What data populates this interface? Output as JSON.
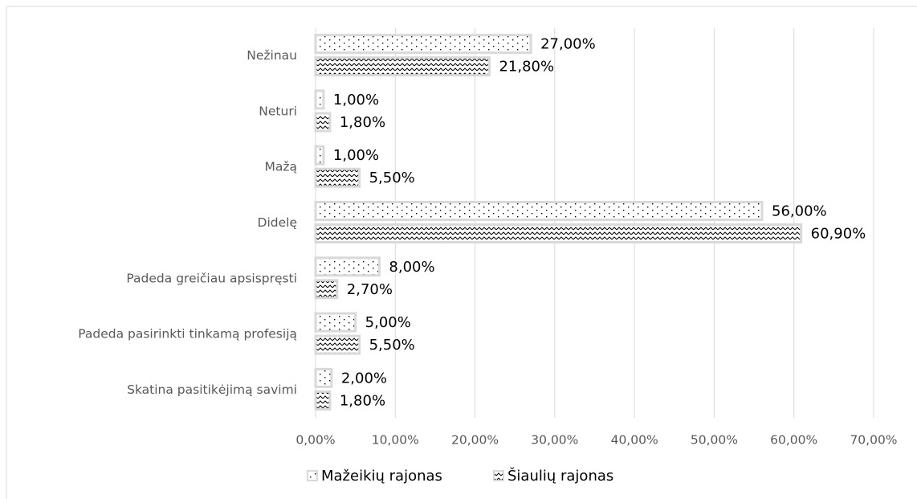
{
  "chart_data": {
    "type": "hbar",
    "categories": [
      "Nežinau",
      "Neturi",
      "Mažą",
      "Didelę",
      "Padeda greičiau apsispręsti",
      "Padeda pasirinkti tinkamą profesiją",
      "Skatina pasitikėjimą savimi"
    ],
    "series": [
      {
        "name": "Mažeikių rajonas",
        "color": "#d9d9d9",
        "pattern": "dots",
        "values": [
          27,
          1,
          1,
          56,
          8,
          5,
          2
        ],
        "value_labels": [
          "27,00%",
          "1,00%",
          "1,00%",
          "56,00%",
          "8,00%",
          "5,00%",
          "2,00%"
        ]
      },
      {
        "name": "Šiaulių rajonas",
        "color": "#d9d9d9",
        "pattern": "hatch",
        "values": [
          21.8,
          1.8,
          5.5,
          60.9,
          2.7,
          5.5,
          1.8
        ],
        "value_labels": [
          "21,80%",
          "1,80%",
          "5,50%",
          "60,90%",
          "2,70%",
          "5,50%",
          "1,80%"
        ]
      }
    ],
    "xlim": [
      0,
      70
    ],
    "xticks": [
      {
        "value": 0,
        "label": "0,00%"
      },
      {
        "value": 10,
        "label": "10,00%"
      },
      {
        "value": 20,
        "label": "20,00%"
      },
      {
        "value": 30,
        "label": "30,00%"
      },
      {
        "value": 40,
        "label": "40,00%"
      },
      {
        "value": 50,
        "label": "50,00%"
      },
      {
        "value": 60,
        "label": "60,00%"
      },
      {
        "value": 70,
        "label": "70,00%"
      }
    ],
    "grid": true,
    "legend": "bottom"
  }
}
